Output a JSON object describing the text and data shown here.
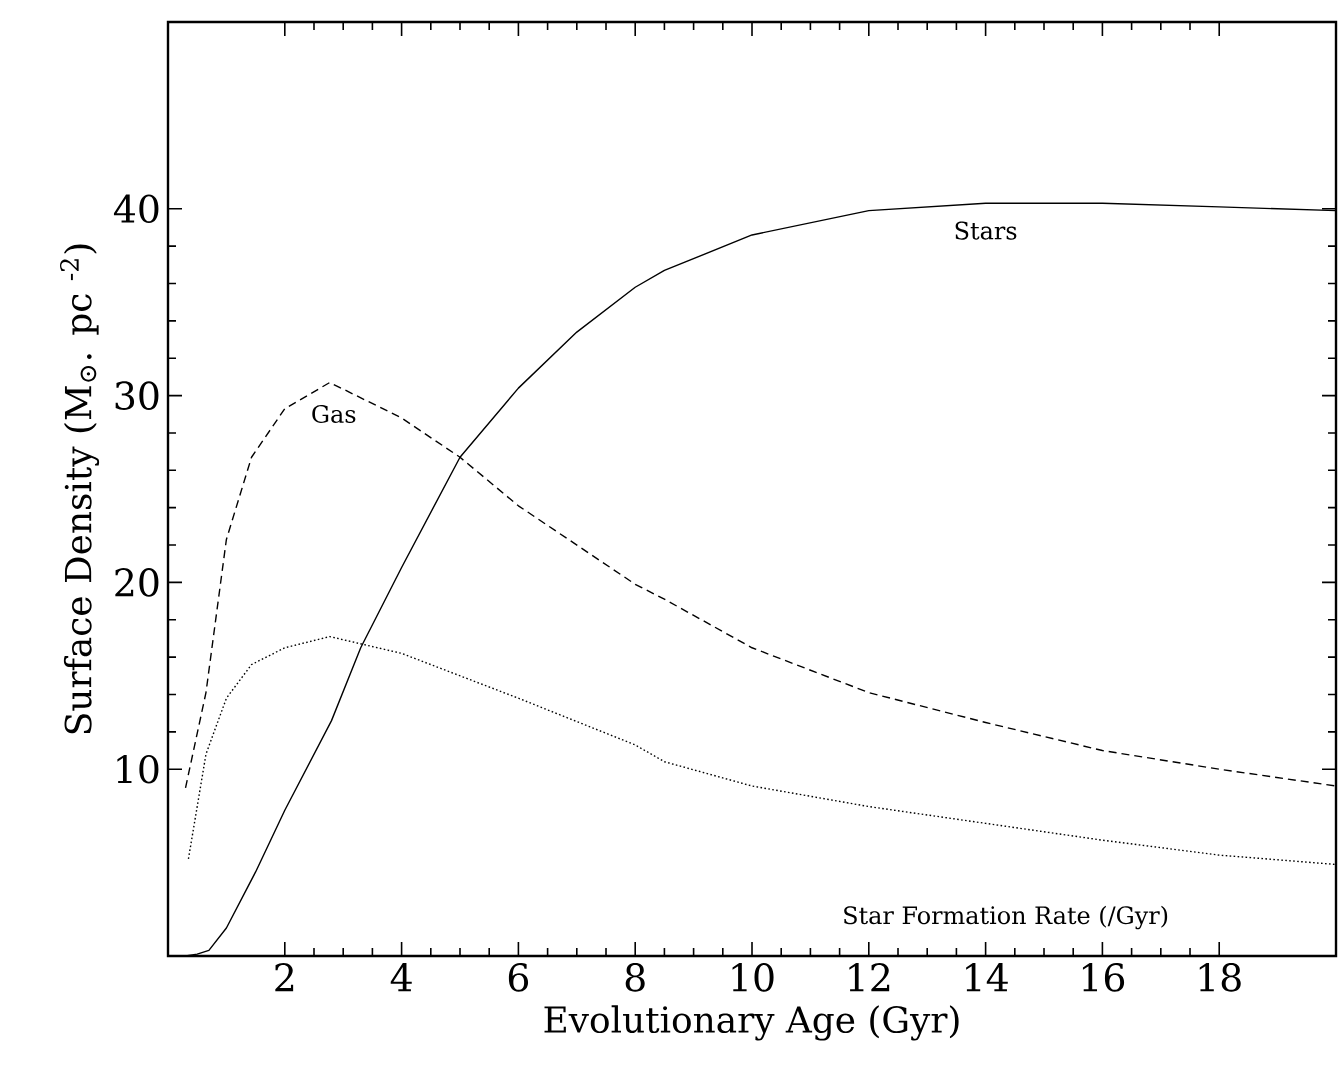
{
  "chart_data": {
    "type": "line",
    "xlabel": "Evolutionary Age (Gyr)",
    "ylabel": "Surface Density (M$_{⊙}$. pc $^{-2}$)",
    "xlim": [
      0,
      20
    ],
    "ylim": [
      0,
      50
    ],
    "xticks": [
      2,
      4,
      6,
      8,
      10,
      12,
      14,
      16,
      18
    ],
    "yticks": [
      10,
      20,
      30,
      40
    ],
    "grid": false,
    "legend": false,
    "marker": "none",
    "series": [
      {
        "name": "Stars",
        "color": "#000000",
        "line_style": "solid",
        "x": [
          0.3,
          0.5,
          0.7,
          1,
          1.5,
          2,
          2.8,
          3.3,
          4,
          5,
          6,
          7,
          8,
          8.5,
          10,
          12,
          14,
          16,
          18,
          20
        ],
        "values": [
          0,
          0.1,
          0.3,
          1.5,
          4.5,
          7.8,
          12.6,
          16.5,
          20.8,
          26.7,
          30.4,
          33.4,
          35.8,
          36.7,
          38.6,
          39.9,
          40.3,
          40.3,
          40.1,
          39.9
        ]
      },
      {
        "name": "Gas",
        "color": "#000000",
        "line_style": "dashed",
        "x": [
          0.3,
          0.65,
          1,
          1.43,
          2,
          2.77,
          4,
          5,
          6,
          8,
          8.5,
          10,
          12,
          14,
          16,
          18,
          20
        ],
        "values": [
          9,
          14.1,
          22.3,
          26.7,
          29.3,
          30.7,
          28.8,
          26.7,
          24.1,
          19.9,
          19.1,
          16.5,
          14.1,
          12.5,
          11,
          10,
          9.1
        ]
      },
      {
        "name": "Star Formation Rate (/Gyr)",
        "color": "#000000",
        "line_style": "dotted",
        "x": [
          0.35,
          0.65,
          1,
          1.43,
          2,
          2.77,
          4,
          6,
          8,
          8.5,
          10,
          12,
          14,
          16,
          18,
          20
        ],
        "values": [
          5.2,
          10.8,
          13.8,
          15.6,
          16.5,
          17.1,
          16.2,
          13.8,
          11.3,
          10.4,
          9.1,
          8,
          7.1,
          6.2,
          5.4,
          4.9
        ]
      }
    ]
  }
}
